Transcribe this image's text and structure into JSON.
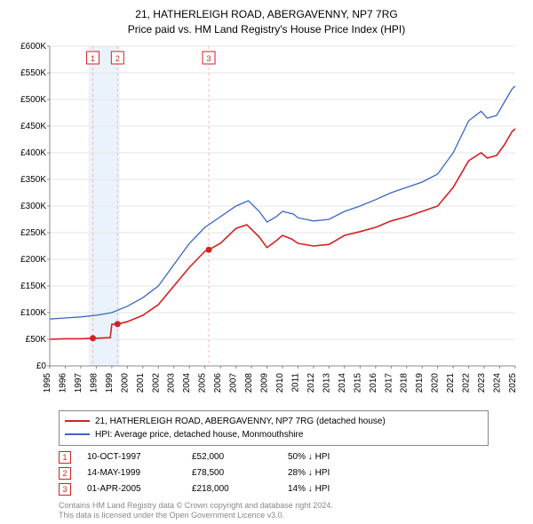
{
  "title_line1": "21, HATHERLEIGH ROAD, ABERGAVENNY, NP7 7RG",
  "title_line2": "Price paid vs. HM Land Registry's House Price Index (HPI)",
  "chart": {
    "type": "line",
    "background_color": "#ffffff",
    "grid_color": "#e6e6e6",
    "axis_color": "#888888",
    "font_size_ticks": 10,
    "x": {
      "min": 1995,
      "max": 2025,
      "ticks": [
        1995,
        1996,
        1997,
        1998,
        1999,
        2000,
        2001,
        2002,
        2003,
        2004,
        2005,
        2006,
        2007,
        2008,
        2009,
        2010,
        2011,
        2012,
        2013,
        2014,
        2015,
        2016,
        2017,
        2018,
        2019,
        2020,
        2021,
        2022,
        2023,
        2024,
        2025
      ]
    },
    "y": {
      "min": 0,
      "max": 600000,
      "tick_step": 50000,
      "ticks": [
        0,
        50000,
        100000,
        150000,
        200000,
        250000,
        300000,
        350000,
        400000,
        450000,
        500000,
        550000,
        600000
      ],
      "tick_labels": [
        "£0",
        "£50K",
        "£100K",
        "£150K",
        "£200K",
        "£250K",
        "£300K",
        "£350K",
        "£400K",
        "£450K",
        "£500K",
        "£550K",
        "£600K"
      ]
    },
    "band": {
      "start": 1997.5,
      "end": 1999.5,
      "color": "#eaf2fb"
    },
    "sale_lines": [
      {
        "n": 1,
        "x": 1997.78,
        "color": "#f4b8b8"
      },
      {
        "n": 2,
        "x": 1999.37,
        "color": "#f4b8b8"
      },
      {
        "n": 3,
        "x": 2005.25,
        "color": "#f4b8b8"
      }
    ],
    "sale_markers": [
      {
        "n": 1,
        "x": 1997.78,
        "y": 52000
      },
      {
        "n": 2,
        "x": 1999.37,
        "y": 78500
      },
      {
        "n": 3,
        "x": 2005.25,
        "y": 218000
      }
    ],
    "series": [
      {
        "name": "property",
        "color": "#d32020",
        "width": 1.6,
        "data": [
          [
            1995.0,
            50000
          ],
          [
            1996.0,
            51000
          ],
          [
            1997.0,
            51000
          ],
          [
            1997.78,
            52000
          ],
          [
            1998.0,
            52000
          ],
          [
            1998.9,
            53000
          ],
          [
            1999.0,
            78000
          ],
          [
            1999.37,
            78500
          ],
          [
            2000.0,
            83000
          ],
          [
            2001.0,
            95000
          ],
          [
            2002.0,
            115000
          ],
          [
            2003.0,
            150000
          ],
          [
            2004.0,
            185000
          ],
          [
            2005.0,
            215000
          ],
          [
            2005.25,
            218000
          ],
          [
            2006.0,
            230000
          ],
          [
            2007.0,
            258000
          ],
          [
            2007.7,
            265000
          ],
          [
            2008.5,
            242000
          ],
          [
            2009.0,
            222000
          ],
          [
            2009.6,
            235000
          ],
          [
            2010.0,
            245000
          ],
          [
            2010.6,
            238000
          ],
          [
            2011.0,
            230000
          ],
          [
            2012.0,
            225000
          ],
          [
            2013.0,
            228000
          ],
          [
            2014.0,
            245000
          ],
          [
            2015.0,
            252000
          ],
          [
            2016.0,
            260000
          ],
          [
            2017.0,
            272000
          ],
          [
            2018.0,
            280000
          ],
          [
            2019.0,
            290000
          ],
          [
            2020.0,
            300000
          ],
          [
            2021.0,
            335000
          ],
          [
            2022.0,
            385000
          ],
          [
            2022.8,
            400000
          ],
          [
            2023.2,
            390000
          ],
          [
            2023.8,
            395000
          ],
          [
            2024.3,
            415000
          ],
          [
            2024.8,
            440000
          ],
          [
            2025.0,
            445000
          ]
        ]
      },
      {
        "name": "hpi",
        "color": "#3a66c7",
        "width": 1.3,
        "data": [
          [
            1995.0,
            88000
          ],
          [
            1996.0,
            90000
          ],
          [
            1997.0,
            92000
          ],
          [
            1998.0,
            95000
          ],
          [
            1999.0,
            100000
          ],
          [
            2000.0,
            112000
          ],
          [
            2001.0,
            128000
          ],
          [
            2002.0,
            150000
          ],
          [
            2003.0,
            190000
          ],
          [
            2004.0,
            230000
          ],
          [
            2005.0,
            260000
          ],
          [
            2006.0,
            280000
          ],
          [
            2007.0,
            300000
          ],
          [
            2007.8,
            310000
          ],
          [
            2008.5,
            290000
          ],
          [
            2009.0,
            270000
          ],
          [
            2009.6,
            280000
          ],
          [
            2010.0,
            290000
          ],
          [
            2010.7,
            285000
          ],
          [
            2011.0,
            278000
          ],
          [
            2012.0,
            272000
          ],
          [
            2013.0,
            275000
          ],
          [
            2014.0,
            290000
          ],
          [
            2015.0,
            300000
          ],
          [
            2016.0,
            312000
          ],
          [
            2017.0,
            325000
          ],
          [
            2018.0,
            335000
          ],
          [
            2019.0,
            345000
          ],
          [
            2020.0,
            360000
          ],
          [
            2021.0,
            400000
          ],
          [
            2022.0,
            460000
          ],
          [
            2022.8,
            478000
          ],
          [
            2023.2,
            465000
          ],
          [
            2023.8,
            470000
          ],
          [
            2024.3,
            495000
          ],
          [
            2024.8,
            520000
          ],
          [
            2025.0,
            525000
          ]
        ]
      }
    ]
  },
  "legend": {
    "rows": [
      {
        "color": "#d32020",
        "label": "21, HATHERLEIGH ROAD, ABERGAVENNY, NP7 7RG (detached house)"
      },
      {
        "color": "#3a66c7",
        "label": "HPI: Average price, detached house, Monmouthshire"
      }
    ]
  },
  "markers": [
    {
      "n": "1",
      "date": "10-OCT-1997",
      "price": "£52,000",
      "hpi": "50% ↓ HPI"
    },
    {
      "n": "2",
      "date": "14-MAY-1999",
      "price": "£78,500",
      "hpi": "28% ↓ HPI"
    },
    {
      "n": "3",
      "date": "01-APR-2005",
      "price": "£218,000",
      "hpi": "14% ↓ HPI"
    }
  ],
  "footnote_line1": "Contains HM Land Registry data © Crown copyright and database right 2024.",
  "footnote_line2": "This data is licensed under the Open Government Licence v3.0."
}
